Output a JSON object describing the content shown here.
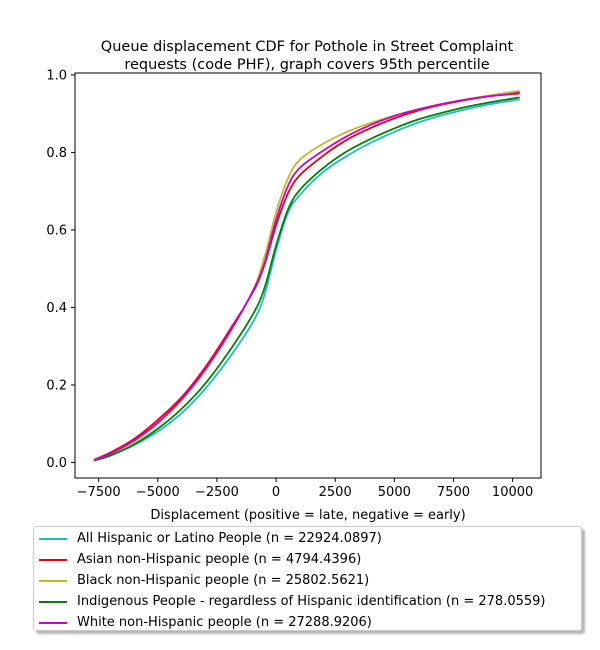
{
  "chart_data": {
    "type": "line",
    "title": "Queue displacement CDF for Pothole in Street Complaint\nrequests (code PHF), graph covers 95th percentile",
    "xlabel": "Displacement (positive = late, negative = early)",
    "ylabel": "",
    "xlim": [
      -8500,
      11200
    ],
    "ylim": [
      -0.04,
      1.005
    ],
    "xticks": [
      -7500,
      -5000,
      -2500,
      0,
      2500,
      5000,
      7500,
      10000
    ],
    "xtick_labels": [
      "−7500",
      "−5000",
      "−2500",
      "0",
      "2500",
      "5000",
      "7500",
      "10000"
    ],
    "yticks": [
      0.0,
      0.2,
      0.4,
      0.6,
      0.8,
      1.0
    ],
    "ytick_labels": [
      "0.0",
      "0.2",
      "0.4",
      "0.6",
      "0.8",
      "1.0"
    ],
    "grid": false,
    "legend_position": "below",
    "x": [
      -7700,
      -7000,
      -6000,
      -5000,
      -4000,
      -3000,
      -2000,
      -1000,
      -500,
      0,
      500,
      1000,
      2000,
      3000,
      4000,
      5000,
      6000,
      7000,
      8000,
      9000,
      10300
    ],
    "series": [
      {
        "name": "All Hispanic or Latino People (n = 22924.0897)",
        "color": "#17becf",
        "values": [
          0.005,
          0.018,
          0.045,
          0.08,
          0.127,
          0.19,
          0.268,
          0.36,
          0.43,
          0.548,
          0.644,
          0.69,
          0.75,
          0.791,
          0.825,
          0.853,
          0.877,
          0.896,
          0.911,
          0.924,
          0.937
        ]
      },
      {
        "name": "Asian non-Hispanic people (n = 4794.4396)",
        "color": "#e8000b",
        "values": [
          0.007,
          0.026,
          0.061,
          0.11,
          0.168,
          0.245,
          0.338,
          0.437,
          0.508,
          0.612,
          0.694,
          0.741,
          0.792,
          0.833,
          0.863,
          0.888,
          0.908,
          0.923,
          0.935,
          0.945,
          0.956
        ]
      },
      {
        "name": "Black non-Hispanic people (n = 25802.5621)",
        "color": "#bcbd22",
        "values": [
          0.006,
          0.022,
          0.054,
          0.1,
          0.16,
          0.236,
          0.33,
          0.44,
          0.528,
          0.645,
          0.732,
          0.781,
          0.823,
          0.853,
          0.876,
          0.895,
          0.911,
          0.925,
          0.937,
          0.947,
          0.959
        ]
      },
      {
        "name": "Indigenous People - regardless of Hispanic identification (n = 278.0559)",
        "color": "#008000",
        "values": [
          0.005,
          0.018,
          0.047,
          0.087,
          0.138,
          0.203,
          0.285,
          0.38,
          0.448,
          0.56,
          0.652,
          0.703,
          0.76,
          0.803,
          0.835,
          0.862,
          0.885,
          0.902,
          0.917,
          0.929,
          0.942
        ]
      },
      {
        "name": "White non-Hispanic people (n = 27288.9206)",
        "color": "#cc00cc",
        "values": [
          0.006,
          0.023,
          0.057,
          0.103,
          0.163,
          0.24,
          0.333,
          0.44,
          0.512,
          0.626,
          0.713,
          0.76,
          0.805,
          0.842,
          0.871,
          0.894,
          0.911,
          0.925,
          0.936,
          0.945,
          0.952
        ]
      }
    ]
  }
}
